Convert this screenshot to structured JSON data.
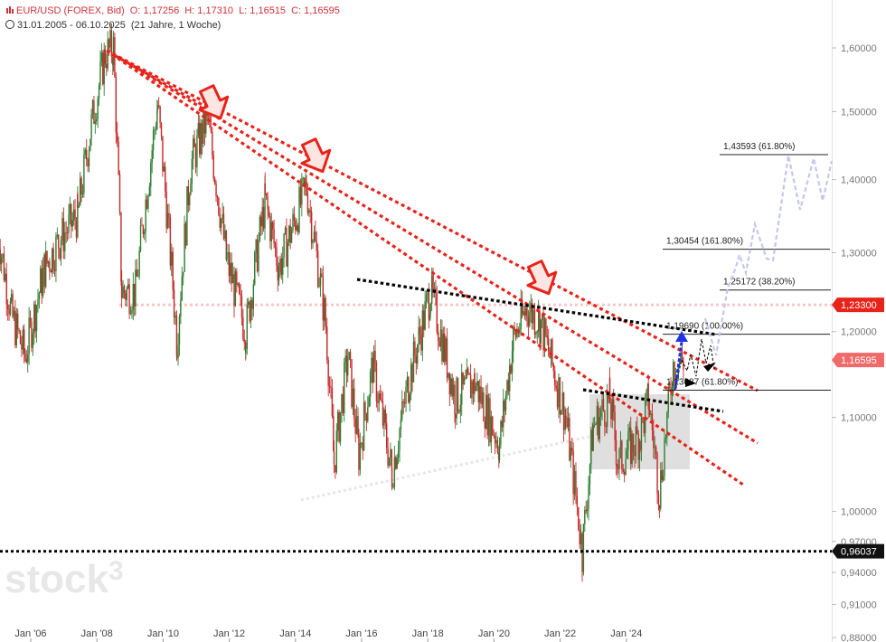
{
  "header": {
    "symbol": "EUR/USD (FOREX, Bid)",
    "open": "O: 1,17256",
    "high": "H: 1,17310",
    "low": "L: 1,16515",
    "close": "C: 1,16595",
    "range": "31.01.2005 - 06.10.2025",
    "duration": "(21 Jahre, 1 Woche)"
  },
  "watermark": "stock3",
  "colors": {
    "candle_up": "#2e7d32",
    "candle_down": "#c62828",
    "trend_red": "#e8231a",
    "arrow_red": "#e8231a",
    "dotted_black": "#000000",
    "projection": "#c5c5ee",
    "accent_badge_red": "#e8231a",
    "badge_light_red": "#f06a6a"
  },
  "price_badges": [
    {
      "label": "1,23300",
      "value": 1.233,
      "color": "#e8231a"
    },
    {
      "label": "1,16595",
      "value": 1.16595,
      "color": "#f06a6a"
    },
    {
      "label": "0,96037",
      "value": 0.96037,
      "color": "#111111"
    }
  ],
  "chart_data": {
    "type": "candlestick",
    "title": "EUR/USD (FOREX, Bid)",
    "x_ticks": [
      "Jan '06",
      "Jan '08",
      "Jan '10",
      "Jan '12",
      "Jan '14",
      "Jan '16",
      "Jan '18",
      "Jan '20",
      "Jan '22",
      "Jan '24"
    ],
    "y_ticks": [
      "1,60000",
      "1,50000",
      "1,40000",
      "1,30000",
      "1,20000",
      "1,10000",
      "1,00000",
      "0,97000",
      "0,94000",
      "0,91000",
      "0,88000"
    ],
    "y_scale": "log",
    "ylim": [
      0.88,
      1.62
    ],
    "price_path": [
      [
        "2005-01",
        1.33
      ],
      [
        "2005-06",
        1.22
      ],
      [
        "2005-11",
        1.17
      ],
      [
        "2006-06",
        1.28
      ],
      [
        "2006-12",
        1.32
      ],
      [
        "2007-06",
        1.35
      ],
      [
        "2007-11",
        1.48
      ],
      [
        "2008-04",
        1.59
      ],
      [
        "2008-07",
        1.6
      ],
      [
        "2008-10",
        1.25
      ],
      [
        "2009-03",
        1.25
      ],
      [
        "2009-11",
        1.51
      ],
      [
        "2010-06",
        1.19
      ],
      [
        "2010-11",
        1.42
      ],
      [
        "2011-05",
        1.49
      ],
      [
        "2011-12",
        1.29
      ],
      [
        "2012-07",
        1.2
      ],
      [
        "2013-02",
        1.37
      ],
      [
        "2013-07",
        1.28
      ],
      [
        "2014-05",
        1.39
      ],
      [
        "2014-12",
        1.21
      ],
      [
        "2015-03",
        1.05
      ],
      [
        "2015-08",
        1.17
      ],
      [
        "2015-12",
        1.06
      ],
      [
        "2016-05",
        1.16
      ],
      [
        "2016-12",
        1.04
      ],
      [
        "2017-06",
        1.14
      ],
      [
        "2018-02",
        1.25
      ],
      [
        "2018-11",
        1.12
      ],
      [
        "2019-06",
        1.14
      ],
      [
        "2020-03",
        1.07
      ],
      [
        "2020-08",
        1.19
      ],
      [
        "2021-01",
        1.23
      ],
      [
        "2021-06",
        1.21
      ],
      [
        "2022-03",
        1.1
      ],
      [
        "2022-09",
        0.96
      ],
      [
        "2023-01",
        1.09
      ],
      [
        "2023-07",
        1.12
      ],
      [
        "2023-10",
        1.05
      ],
      [
        "2024-06",
        1.08
      ],
      [
        "2024-09",
        1.12
      ],
      [
        "2025-01",
        1.02
      ],
      [
        "2025-06",
        1.16
      ],
      [
        "2025-10",
        1.166
      ]
    ],
    "fib_levels": [
      {
        "label": "1,43593 (61.80%)",
        "value": 1.43593
      },
      {
        "label": "1,30454 (161.80%)",
        "value": 1.30454
      },
      {
        "label": "1,25172 (38.20%)",
        "value": 1.25172
      },
      {
        "label": "1,19690 (100.00%)",
        "value": 1.1969
      },
      {
        "label": "1,13087 (61.80%)",
        "value": 1.13087
      }
    ],
    "horizontal_lines": [
      {
        "value": 0.96037,
        "style": "dotted-black"
      },
      {
        "value": 1.233,
        "style": "dotted-pink"
      }
    ],
    "grid": false,
    "legend": "none"
  }
}
